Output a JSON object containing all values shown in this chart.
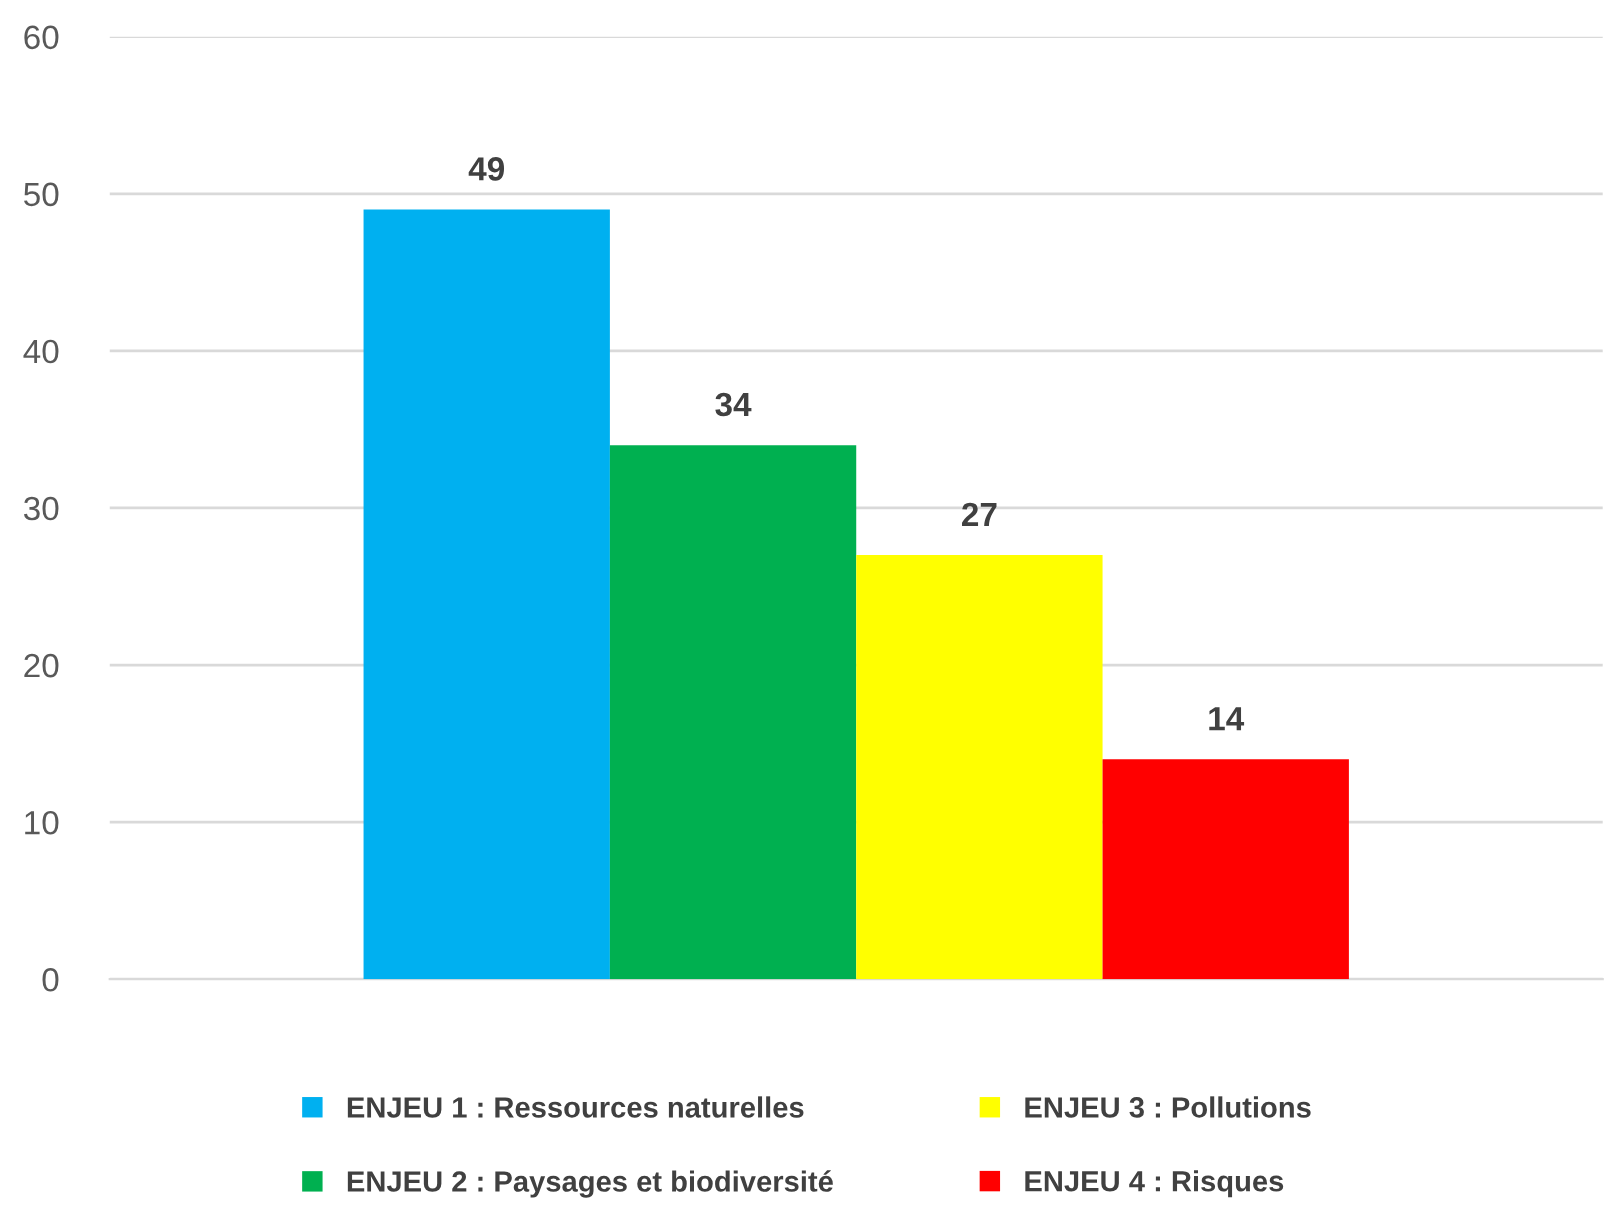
{
  "chart_data": {
    "type": "bar",
    "categories": [
      null
    ],
    "series": [
      {
        "name": "ENJEU 1 : Ressources naturelles",
        "color": "#00b0f0",
        "values": [
          49
        ]
      },
      {
        "name": "ENJEU 2 : Paysages et biodiversité",
        "color": "#00b050",
        "values": [
          34
        ]
      },
      {
        "name": "ENJEU 3 : Pollutions",
        "color": "#ffff00",
        "values": [
          27
        ]
      },
      {
        "name": "ENJEU 4 : Risques",
        "color": "#ff0000",
        "values": [
          14
        ]
      }
    ],
    "ylim": [
      0,
      60
    ],
    "yticks": [
      0,
      10,
      20,
      30,
      40,
      50,
      60
    ],
    "grid": "y",
    "legend": "bottom",
    "data_labels": true
  }
}
